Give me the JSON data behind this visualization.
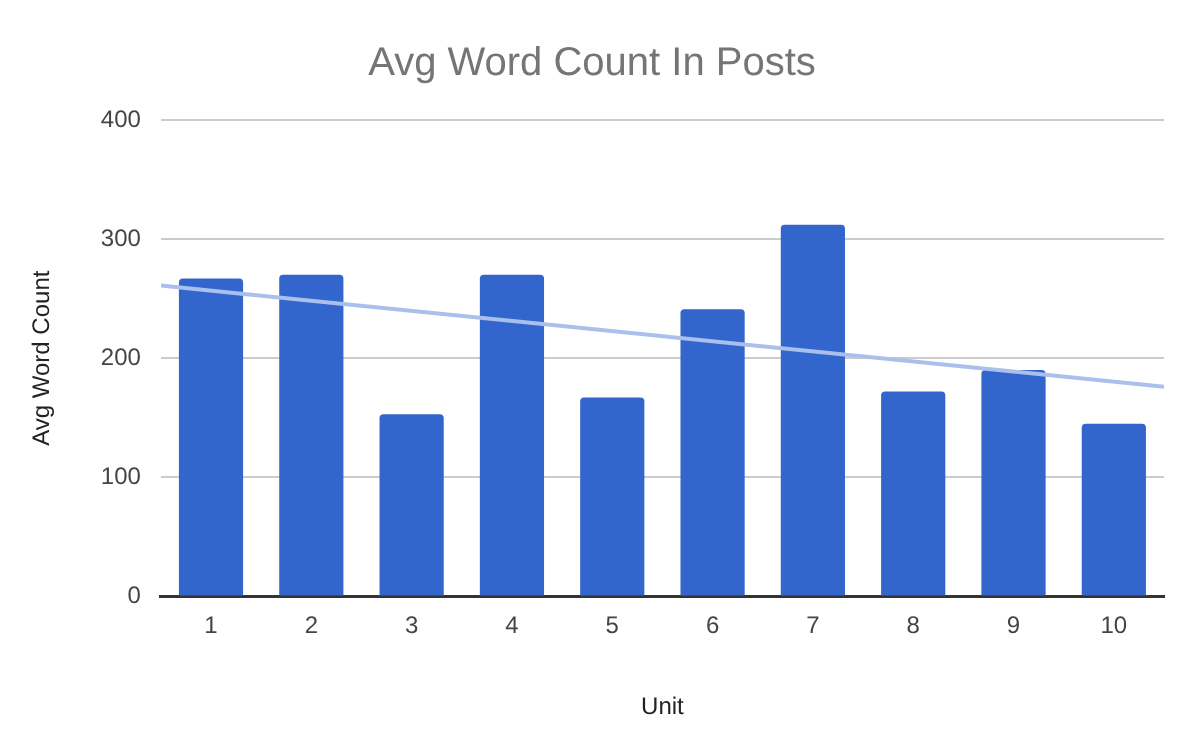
{
  "chart_data": {
    "type": "bar",
    "title": "Avg Word Count In Posts",
    "xlabel": "Unit",
    "ylabel": "Avg Word Count",
    "x": [
      1,
      2,
      3,
      4,
      5,
      6,
      7,
      8,
      9,
      10
    ],
    "xlim": [
      0.5,
      10.5
    ],
    "xticks": [
      1,
      2,
      3,
      4,
      5,
      6,
      7,
      8,
      9,
      10
    ],
    "series": [
      {
        "color": "#3366cc",
        "values": [
          267,
          270,
          153,
          270,
          167,
          241,
          312,
          172,
          190,
          145
        ]
      },
      {
        "type": "line",
        "color": "#a9c0ec",
        "x": [
          0.5,
          10.5
        ],
        "values": [
          261,
          176
        ],
        "marker": "none"
      }
    ],
    "ylim": [
      0,
      400
    ],
    "yticks": [
      0,
      100,
      200,
      300,
      400
    ],
    "grid": "y",
    "legend": false
  }
}
